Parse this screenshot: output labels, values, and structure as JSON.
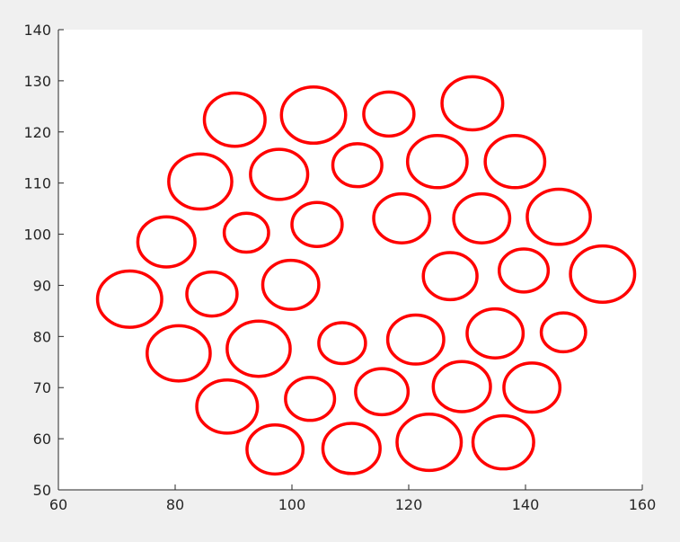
{
  "chart_data": {
    "type": "scatter",
    "color": "#ff0000",
    "x": [
      90.2,
      103.7,
      116.6,
      130.9,
      84.3,
      97.8,
      111.2,
      124.9,
      138.2,
      78.5,
      92.2,
      104.3,
      118.8,
      132.5,
      145.7,
      72.2,
      86.3,
      99.8,
      127.1,
      139.7,
      153.2,
      80.6,
      94.3,
      108.6,
      121.2,
      134.8,
      146.5,
      88.9,
      103.1,
      115.4,
      129.1,
      141.1,
      97.1,
      110.2,
      123.5,
      136.2
    ],
    "y": [
      122.4,
      123.3,
      123.5,
      125.6,
      110.3,
      111.7,
      113.5,
      114.2,
      114.2,
      98.5,
      100.3,
      101.9,
      103.1,
      103.1,
      103.4,
      87.3,
      88.3,
      90.1,
      91.8,
      92.9,
      92.2,
      76.7,
      77.6,
      78.7,
      79.4,
      80.6,
      80.8,
      66.3,
      67.8,
      69.2,
      70.2,
      70.0,
      57.9,
      58.1,
      59.3,
      59.3
    ],
    "r": [
      5.2,
      5.5,
      4.3,
      5.2,
      5.4,
      4.9,
      4.2,
      5.1,
      5.1,
      4.9,
      3.8,
      4.3,
      4.8,
      4.8,
      5.4,
      5.5,
      4.3,
      4.8,
      4.6,
      4.2,
      5.5,
      5.4,
      5.4,
      4.0,
      4.8,
      4.8,
      3.8,
      5.2,
      4.2,
      4.5,
      4.9,
      4.8,
      4.8,
      4.9,
      5.5,
      5.2
    ],
    "xlim": [
      60,
      160
    ],
    "ylim": [
      50,
      140
    ],
    "xticks": [
      60,
      80,
      100,
      120,
      140,
      160
    ],
    "yticks": [
      50,
      60,
      70,
      80,
      90,
      100,
      110,
      120,
      130,
      140
    ]
  }
}
